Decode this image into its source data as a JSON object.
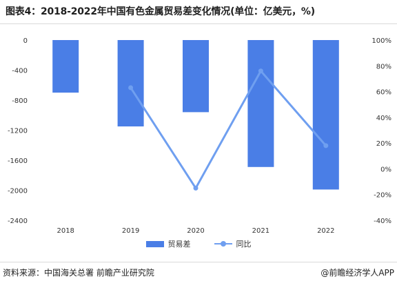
{
  "title": "图表4：2018-2022年中国有色金属贸易差变化情况(单位：亿美元，%)",
  "source": "资料来源：中国海关总署 前瞻产业研究院",
  "credit": "@前瞻经济学人APP",
  "colors": {
    "bar": "#4a7ee6",
    "line": "#6f9ff0"
  },
  "chart_data": {
    "type": "bar",
    "categories": [
      "2018",
      "2019",
      "2020",
      "2021",
      "2022"
    ],
    "series": [
      {
        "name": "贸易差",
        "type": "bar",
        "axis": "left",
        "values": [
          -700,
          -1150,
          -960,
          -1690,
          -1990
        ]
      },
      {
        "name": "同比",
        "type": "line",
        "axis": "right",
        "values": [
          63,
          -15,
          76,
          18
        ],
        "x": [
          "2019",
          "2020",
          "2021",
          "2022"
        ]
      }
    ],
    "y_left": {
      "ylim": [
        -2400,
        0
      ],
      "ticks": [
        "0",
        "-400",
        "-800",
        "-1200",
        "-1600",
        "-2000",
        "-2400"
      ]
    },
    "y_right": {
      "ylim": [
        -40,
        100
      ],
      "ticks": [
        "100%",
        "80%",
        "60%",
        "40%",
        "20%",
        "0%",
        "-20%",
        "-40%"
      ]
    },
    "grid": false,
    "legend": "bottom-center"
  }
}
